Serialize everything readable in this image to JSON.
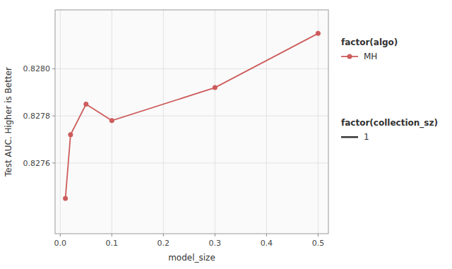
{
  "chart_data": {
    "type": "line",
    "x": [
      0.01,
      0.02,
      0.05,
      0.1,
      0.3,
      0.5
    ],
    "series": [
      {
        "name": "MH",
        "color": "#cd5c5c",
        "marker": "circle",
        "values": [
          0.82745,
          0.82772,
          0.82785,
          0.82778,
          0.82792,
          0.82815
        ]
      }
    ],
    "x_label": "model_size",
    "y_label": "Test AUC. Higher is Better",
    "xlim": [
      -0.01,
      0.52
    ],
    "ylim": [
      0.8273,
      0.82825
    ],
    "xticks": [
      {
        "value": 0,
        "label": "0.0"
      },
      0.1,
      0.2,
      0.3,
      0.4,
      0.5
    ],
    "yticks": [
      0.8276,
      0.8278,
      {
        "value": 0.828,
        "label": "0.8280"
      }
    ],
    "grid": true,
    "legend": "right",
    "legends": [
      {
        "title": "factor(algo)"
      },
      {
        "title": "factor(collection_sz)",
        "labels": [
          "1"
        ],
        "color": "#333333"
      }
    ]
  }
}
